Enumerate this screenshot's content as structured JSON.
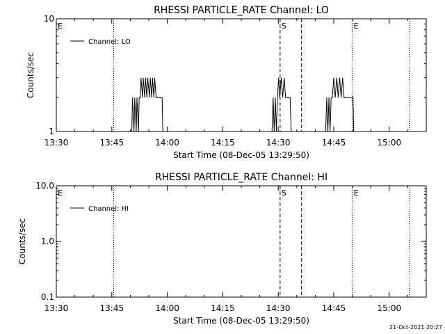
{
  "footer": {
    "timestamp": "21-Oct-2021 20:27"
  },
  "chart_data": [
    {
      "type": "line",
      "title": "RHESSI PARTICLE_RATE Channel: LO",
      "ylabel": "Counts/sec",
      "xlabel": "Start Time (08-Dec-05 13:29:50)",
      "yscale": "log",
      "ylim": [
        1,
        10
      ],
      "y_ticks": [
        1,
        10
      ],
      "y_tick_labels": [
        "1",
        "10"
      ],
      "x_unit": "minutes after 13:30",
      "xlim": [
        0,
        100
      ],
      "x_ticks": [
        0,
        15,
        30,
        45,
        60,
        75,
        90
      ],
      "x_tick_labels": [
        "13:30",
        "13:45",
        "14:00",
        "14:15",
        "14:30",
        "14:45",
        "15:00"
      ],
      "legend": {
        "position": "top-left",
        "entries": [
          "Channel: LO"
        ]
      },
      "markers": [
        {
          "label": "E",
          "x": 0,
          "style": "none"
        },
        {
          "label": "",
          "x": 15.5,
          "style": "dotted"
        },
        {
          "label": "S",
          "x": 60.5,
          "style": "dashed"
        },
        {
          "label": "",
          "x": 66.3,
          "style": "dashed"
        },
        {
          "label": "E",
          "x": 80,
          "style": "dotted"
        },
        {
          "label": "",
          "x": 95.5,
          "style": "dotted"
        }
      ],
      "series": [
        {
          "name": "Channel: LO",
          "x": [
            20.4,
            20.6,
            21.0,
            21.2,
            21.6,
            21.8,
            22.2,
            22.4,
            22.7,
            22.9,
            23.3,
            23.5,
            23.9,
            24.1,
            24.5,
            24.7,
            25.2,
            25.4,
            25.8,
            26.0,
            26.4,
            26.6,
            27.0,
            27.3,
            27.6,
            28.6,
            28.8,
            58.3,
            58.6,
            58.9,
            59.2,
            59.5,
            59.8,
            60.1,
            60.4,
            60.8,
            61.2,
            61.6,
            62.0,
            62.4,
            62.8,
            63.2,
            63.5,
            72.8,
            73.1,
            73.4,
            73.7,
            74.0,
            74.3,
            74.6,
            75.0,
            75.4,
            75.8,
            76.2,
            76.6,
            77.0,
            77.4,
            77.8,
            78.2,
            78.6,
            78.9,
            80.2,
            80.4
          ],
          "y": [
            1,
            2,
            1,
            2,
            1,
            2,
            1,
            2,
            2,
            3,
            2,
            3,
            2,
            3,
            2,
            3,
            2,
            3,
            2,
            3,
            2,
            3,
            2,
            2,
            2,
            2,
            1,
            1,
            2,
            1,
            2,
            1,
            2,
            3,
            2,
            3,
            2,
            3,
            2,
            2,
            2,
            2,
            1,
            1,
            2,
            1,
            2,
            1,
            2,
            2,
            3,
            2,
            3,
            2,
            3,
            2,
            3,
            2,
            2,
            2,
            2,
            2,
            1
          ]
        }
      ]
    },
    {
      "type": "line",
      "title": "RHESSI PARTICLE_RATE Channel: HI",
      "ylabel": "Counts/sec",
      "xlabel": "Start Time (08-Dec-05 13:29:50)",
      "yscale": "log",
      "ylim": [
        0.1,
        10
      ],
      "y_ticks": [
        0.1,
        1,
        10
      ],
      "y_tick_labels": [
        "0.1",
        "1.0",
        "10.0"
      ],
      "x_unit": "minutes after 13:30",
      "xlim": [
        0,
        100
      ],
      "x_ticks": [
        0,
        15,
        30,
        45,
        60,
        75,
        90
      ],
      "x_tick_labels": [
        "13:30",
        "13:45",
        "14:00",
        "14:15",
        "14:30",
        "14:45",
        "15:00"
      ],
      "legend": {
        "position": "top-left",
        "entries": [
          "Channel: HI"
        ]
      },
      "markers": [
        {
          "label": "E",
          "x": 0,
          "style": "none"
        },
        {
          "label": "",
          "x": 15.5,
          "style": "dotted"
        },
        {
          "label": "S",
          "x": 60.5,
          "style": "dashed"
        },
        {
          "label": "",
          "x": 66.3,
          "style": "dashed"
        },
        {
          "label": "E",
          "x": 80,
          "style": "dotted"
        },
        {
          "label": "",
          "x": 95.5,
          "style": "dotted"
        }
      ],
      "series": [
        {
          "name": "Channel: HI",
          "x": [],
          "y": []
        }
      ]
    }
  ]
}
